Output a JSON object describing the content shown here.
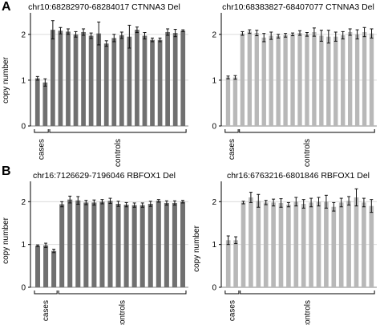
{
  "figure": {
    "panel_a_label": "A",
    "panel_b_label": "B"
  },
  "chart_data": [
    {
      "type": "bar",
      "title": "chr10:68282970-68284017 CTNNA3 Del",
      "ylabel": "copy number",
      "ylim": [
        0,
        2.4
      ],
      "yticks": [
        0,
        1,
        2
      ],
      "grid": true,
      "bar_color": "#707070",
      "group_labels": [
        "cases",
        "controls"
      ],
      "n_cases": 2,
      "values": [
        1.04,
        0.95,
        2.1,
        2.08,
        2.06,
        2.0,
        2.05,
        1.97,
        2.02,
        1.8,
        1.92,
        1.98,
        1.95,
        2.1,
        1.97,
        1.88,
        1.88,
        2.05,
        2.03,
        2.08
      ],
      "errors": [
        0.04,
        0.08,
        0.2,
        0.07,
        0.06,
        0.06,
        0.07,
        0.06,
        0.25,
        0.06,
        0.08,
        0.07,
        0.25,
        0.06,
        0.07,
        0.04,
        0.04,
        0.07,
        0.08,
        0.02
      ]
    },
    {
      "type": "bar",
      "title": "chr10:68383827-68407077 CTNNA3 Del",
      "ylabel": "",
      "ylim": [
        0,
        2.4
      ],
      "yticks": [
        0,
        1,
        2
      ],
      "grid": true,
      "bar_color": "#b8b8b8",
      "group_labels": [
        "cases",
        "controls"
      ],
      "n_cases": 2,
      "values": [
        1.06,
        1.06,
        2.02,
        2.06,
        2.03,
        1.93,
        1.97,
        1.96,
        1.98,
        2.0,
        2.03,
        2.0,
        2.05,
        1.97,
        1.95,
        1.95,
        1.98,
        2.05,
        2.0,
        2.05,
        2.02
      ],
      "errors": [
        0.03,
        0.04,
        0.04,
        0.04,
        0.06,
        0.09,
        0.08,
        0.04,
        0.04,
        0.03,
        0.05,
        0.04,
        0.09,
        0.12,
        0.14,
        0.1,
        0.08,
        0.07,
        0.1,
        0.1,
        0.1
      ]
    },
    {
      "type": "bar",
      "title": "chr16:7126629-7196046 RBFOX1 Del",
      "ylabel": "copy number",
      "ylim": [
        0,
        2.4
      ],
      "yticks": [
        0,
        1,
        2
      ],
      "grid": true,
      "bar_color": "#707070",
      "group_labels": [
        "cases",
        "controls"
      ],
      "n_cases": 3,
      "values": [
        0.97,
        0.98,
        0.85,
        1.94,
        2.05,
        2.03,
        1.98,
        1.98,
        2.0,
        2.02,
        1.95,
        1.93,
        1.92,
        1.92,
        1.95,
        2.02,
        1.97,
        1.97,
        2.0
      ],
      "errors": [
        0.02,
        0.05,
        0.04,
        0.06,
        0.08,
        0.09,
        0.05,
        0.06,
        0.05,
        0.06,
        0.06,
        0.05,
        0.05,
        0.05,
        0.06,
        0.03,
        0.05,
        0.05,
        0.03
      ]
    },
    {
      "type": "bar",
      "title": "chr16:6763216-6801846 RBFOX1 Del",
      "ylabel": "copy number",
      "ylim": [
        0,
        2.4
      ],
      "yticks": [
        0,
        1,
        2
      ],
      "grid": true,
      "bar_color": "#b8b8b8",
      "group_labels": [
        "cases",
        "controls"
      ],
      "n_cases": 2,
      "values": [
        1.1,
        1.1,
        1.98,
        2.1,
        2.02,
        1.98,
        1.98,
        1.97,
        1.93,
        2.0,
        1.95,
        1.98,
        2.0,
        2.0,
        1.88,
        1.98,
        2.02,
        2.1,
        1.98,
        1.9
      ],
      "errors": [
        0.1,
        0.08,
        0.03,
        0.12,
        0.15,
        0.05,
        0.08,
        0.1,
        0.05,
        0.1,
        0.1,
        0.1,
        0.1,
        0.15,
        0.1,
        0.1,
        0.1,
        0.2,
        0.1,
        0.15
      ]
    }
  ]
}
